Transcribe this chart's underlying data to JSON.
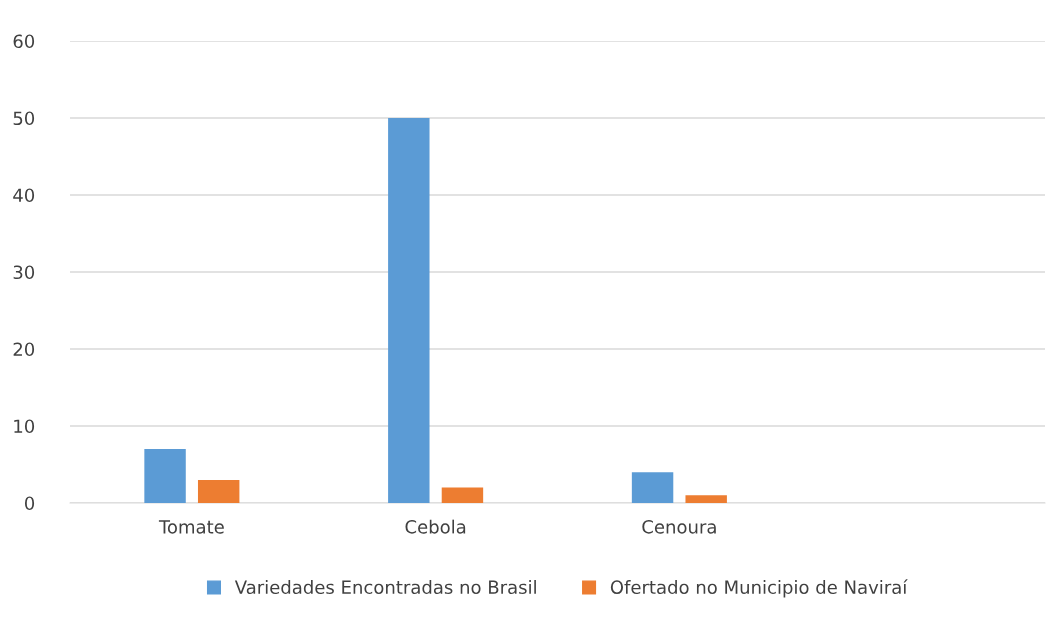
{
  "chart_data": {
    "type": "bar",
    "categories": [
      "Tomate",
      "Cebola",
      "Cenoura",
      null
    ],
    "series": [
      {
        "name": "Variedades Encontradas no Brasil",
        "color": "#5b9bd5",
        "values": [
          7,
          50,
          4,
          null
        ]
      },
      {
        "name": "Ofertado no Municipio de Naviraí",
        "color": "#ed7d31",
        "values": [
          3,
          2,
          1,
          null
        ]
      }
    ],
    "ylim": [
      0,
      60
    ],
    "yticks": [
      0,
      10,
      20,
      30,
      40,
      50,
      60
    ],
    "grid": "y",
    "legend": "bottom"
  }
}
